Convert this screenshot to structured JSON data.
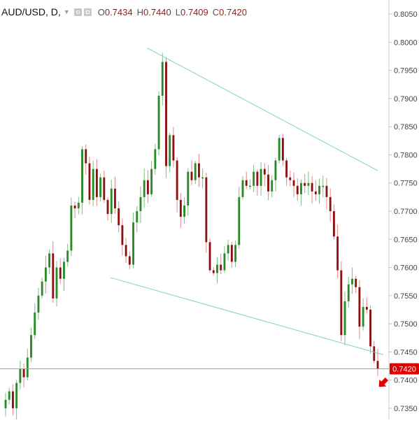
{
  "header": {
    "symbol": "AUD/USD, D,",
    "open_label": "O",
    "open_value": "0.7434",
    "high_label": "H",
    "high_value": "0.7440",
    "low_label": "L",
    "low_value": "0.7409",
    "close_label": "C",
    "close_value": "0.7420"
  },
  "colors": {
    "up": "#2a8a2a",
    "down": "#8c1111",
    "wick_up": "#7fbf7f",
    "wick_down": "#e08a8a",
    "trendline": "#7fd0cf",
    "price_line": "#f08080",
    "price_tag": "#e00000",
    "axis_text": "#444444",
    "arrow": "#e00000"
  },
  "icons": [
    "chevron-down-icon",
    "settings-icon",
    "format-icon",
    "down-arrow-icon"
  ],
  "chart_data": {
    "type": "candlestick",
    "ylim": [
      0.733,
      0.8075
    ],
    "y_ticks": [
      "0.8050",
      "0.8000",
      "0.7950",
      "0.7900",
      "0.7850",
      "0.7800",
      "0.7750",
      "0.7700",
      "0.7650",
      "0.7600",
      "0.7550",
      "0.7500",
      "0.7450",
      "0.7400",
      "0.7350"
    ],
    "last_price_label": "0.7420",
    "last_price": 0.742,
    "trendlines": [
      {
        "from": [
          0,
          0.799
        ],
        "to": [
          1,
          0.7772
        ],
        "x_from": 210,
        "x_to": 540
      },
      {
        "from": [
          0,
          0.7582
        ],
        "to": [
          1,
          0.7445
        ],
        "x_from": 158,
        "x_to": 548
      }
    ],
    "closes": [
      0.7365,
      0.738,
      0.735,
      0.7395,
      0.742,
      0.7405,
      0.744,
      0.748,
      0.752,
      0.755,
      0.7575,
      0.76,
      0.7625,
      0.7545,
      0.76,
      0.758,
      0.761,
      0.763,
      0.771,
      0.7705,
      0.7715,
      0.781,
      0.7785,
      0.772,
      0.7775,
      0.7725,
      0.776,
      0.772,
      0.7695,
      0.774,
      0.7705,
      0.7675,
      0.764,
      0.762,
      0.7605,
      0.768,
      0.77,
      0.7725,
      0.7755,
      0.773,
      0.7775,
      0.781,
      0.7905,
      0.7965,
      0.778,
      0.7835,
      0.779,
      0.772,
      0.769,
      0.771,
      0.777,
      0.7755,
      0.7785,
      0.776,
      0.776,
      0.7645,
      0.7595,
      0.759,
      0.7605,
      0.7595,
      0.7625,
      0.764,
      0.761,
      0.764,
      0.7725,
      0.7755,
      0.7745,
      0.7745,
      0.777,
      0.7745,
      0.7775,
      0.7765,
      0.7735,
      0.7755,
      0.779,
      0.783,
      0.779,
      0.776,
      0.7755,
      0.7745,
      0.773,
      0.775,
      0.7745,
      0.775,
      0.7735,
      0.773,
      0.7745,
      0.7745,
      0.7725,
      0.77,
      0.7655,
      0.7595,
      0.748,
      0.754,
      0.757,
      0.758,
      0.7565,
      0.7495,
      0.753,
      0.7525,
      0.746,
      0.7434,
      0.742
    ],
    "opens": [
      0.735,
      0.7365,
      0.738,
      0.735,
      0.7395,
      0.742,
      0.7405,
      0.744,
      0.748,
      0.752,
      0.755,
      0.7575,
      0.76,
      0.7625,
      0.7545,
      0.76,
      0.758,
      0.761,
      0.763,
      0.771,
      0.7705,
      0.7715,
      0.781,
      0.7785,
      0.772,
      0.7775,
      0.7725,
      0.776,
      0.772,
      0.7695,
      0.774,
      0.7705,
      0.7675,
      0.764,
      0.762,
      0.7605,
      0.768,
      0.77,
      0.7725,
      0.7755,
      0.773,
      0.7775,
      0.781,
      0.7905,
      0.7965,
      0.778,
      0.7835,
      0.779,
      0.772,
      0.769,
      0.771,
      0.777,
      0.7755,
      0.7785,
      0.776,
      0.776,
      0.7645,
      0.7595,
      0.759,
      0.7605,
      0.7595,
      0.7625,
      0.764,
      0.761,
      0.764,
      0.7725,
      0.7755,
      0.7745,
      0.7745,
      0.777,
      0.7745,
      0.7775,
      0.7765,
      0.7735,
      0.7755,
      0.779,
      0.783,
      0.779,
      0.776,
      0.7755,
      0.7745,
      0.773,
      0.775,
      0.7745,
      0.775,
      0.7735,
      0.773,
      0.7745,
      0.7745,
      0.7725,
      0.77,
      0.7655,
      0.7595,
      0.748,
      0.754,
      0.757,
      0.758,
      0.7565,
      0.7495,
      0.753,
      0.7525,
      0.746,
      0.7434
    ]
  }
}
